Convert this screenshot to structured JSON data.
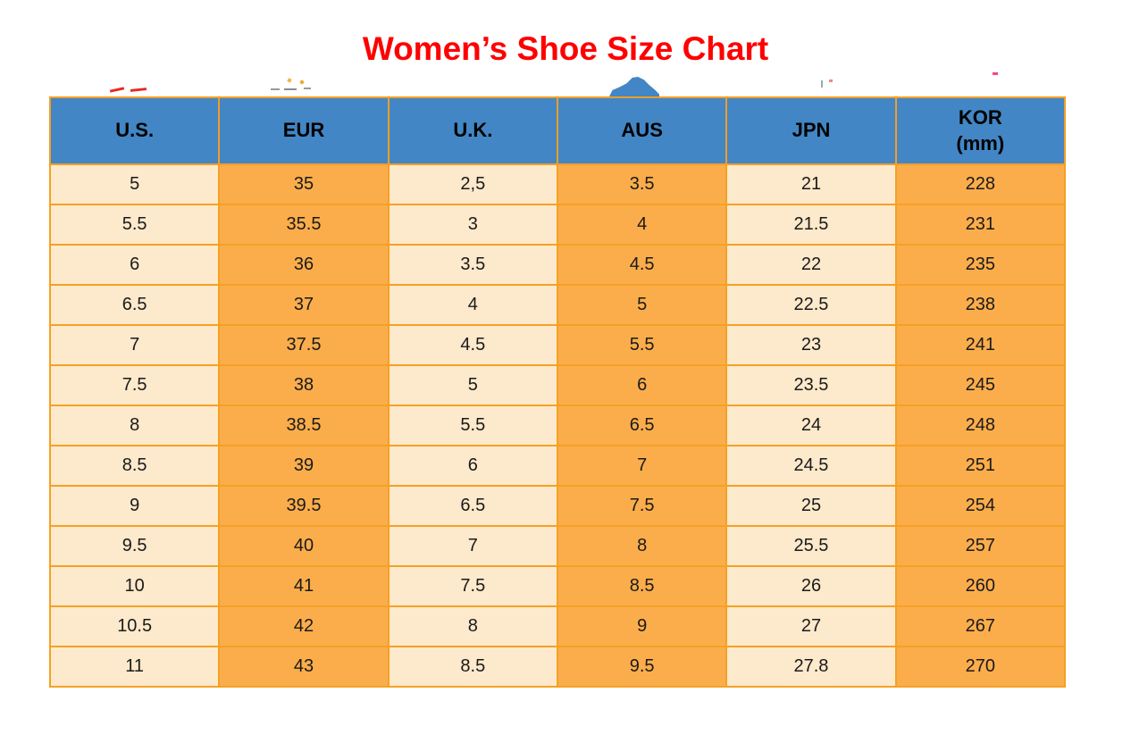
{
  "page": {
    "title": "Women’s Shoe Size Chart"
  },
  "colors": {
    "title_red": "#ff0000",
    "header_blue": "#4286c5",
    "cell_cream": "#fde9cb",
    "cell_orange": "#fbad4b",
    "border_orange": "#f59d25"
  },
  "table": {
    "headers": [
      "U.S.",
      "EUR",
      "U.K.",
      "AUS",
      "JPN"
    ],
    "kor_header": {
      "line1": "KOR",
      "line2": "(mm)"
    },
    "rows": [
      [
        "5",
        "35",
        "2,5",
        "3.5",
        "21",
        "228"
      ],
      [
        "5.5",
        "35.5",
        "3",
        "4",
        "21.5",
        "231"
      ],
      [
        "6",
        "36",
        "3.5",
        "4.5",
        "22",
        "235"
      ],
      [
        "6.5",
        "37",
        "4",
        "5",
        "22.5",
        "238"
      ],
      [
        "7",
        "37.5",
        "4.5",
        "5.5",
        "23",
        "241"
      ],
      [
        "7.5",
        "38",
        "5",
        "6",
        "23.5",
        "245"
      ],
      [
        "8",
        "38.5",
        "5.5",
        "6.5",
        "24",
        "248"
      ],
      [
        "8.5",
        "39",
        "6",
        "7",
        "24.5",
        "251"
      ],
      [
        "9",
        "39.5",
        "6.5",
        "7.5",
        "25",
        "254"
      ],
      [
        "9.5",
        "40",
        "7",
        "8",
        "25.5",
        "257"
      ],
      [
        "10",
        "41",
        "7.5",
        "8.5",
        "26",
        "260"
      ],
      [
        "10.5",
        "42",
        "8",
        "9",
        "27",
        "267"
      ],
      [
        "11",
        "43",
        "8.5",
        "9.5",
        "27.8",
        "270"
      ]
    ]
  },
  "chart_data": {
    "type": "table",
    "title": "Women’s Shoe Size Chart",
    "columns": [
      "U.S.",
      "EUR",
      "U.K.",
      "AUS",
      "JPN",
      "KOR (mm)"
    ],
    "rows": [
      [
        "5",
        "35",
        "2,5",
        "3.5",
        "21",
        "228"
      ],
      [
        "5.5",
        "35.5",
        "3",
        "4",
        "21.5",
        "231"
      ],
      [
        "6",
        "36",
        "3.5",
        "4.5",
        "22",
        "235"
      ],
      [
        "6.5",
        "37",
        "4",
        "5",
        "22.5",
        "238"
      ],
      [
        "7",
        "37.5",
        "4.5",
        "5.5",
        "23",
        "241"
      ],
      [
        "7.5",
        "38",
        "5",
        "6",
        "23.5",
        "245"
      ],
      [
        "8",
        "38.5",
        "5.5",
        "6.5",
        "24",
        "248"
      ],
      [
        "8.5",
        "39",
        "6",
        "7",
        "24.5",
        "251"
      ],
      [
        "9",
        "39.5",
        "6.5",
        "7.5",
        "25",
        "254"
      ],
      [
        "9.5",
        "40",
        "7",
        "8",
        "25.5",
        "257"
      ],
      [
        "10",
        "41",
        "7.5",
        "8.5",
        "26",
        "260"
      ],
      [
        "10.5",
        "42",
        "8",
        "9",
        "27",
        "267"
      ],
      [
        "11",
        "43",
        "8.5",
        "9.5",
        "27.8",
        "270"
      ]
    ],
    "layout": {
      "column_fill_pattern": [
        "cream",
        "orange",
        "cream",
        "orange",
        "cream",
        "orange"
      ],
      "header_fill": "blue",
      "grid": true
    }
  }
}
